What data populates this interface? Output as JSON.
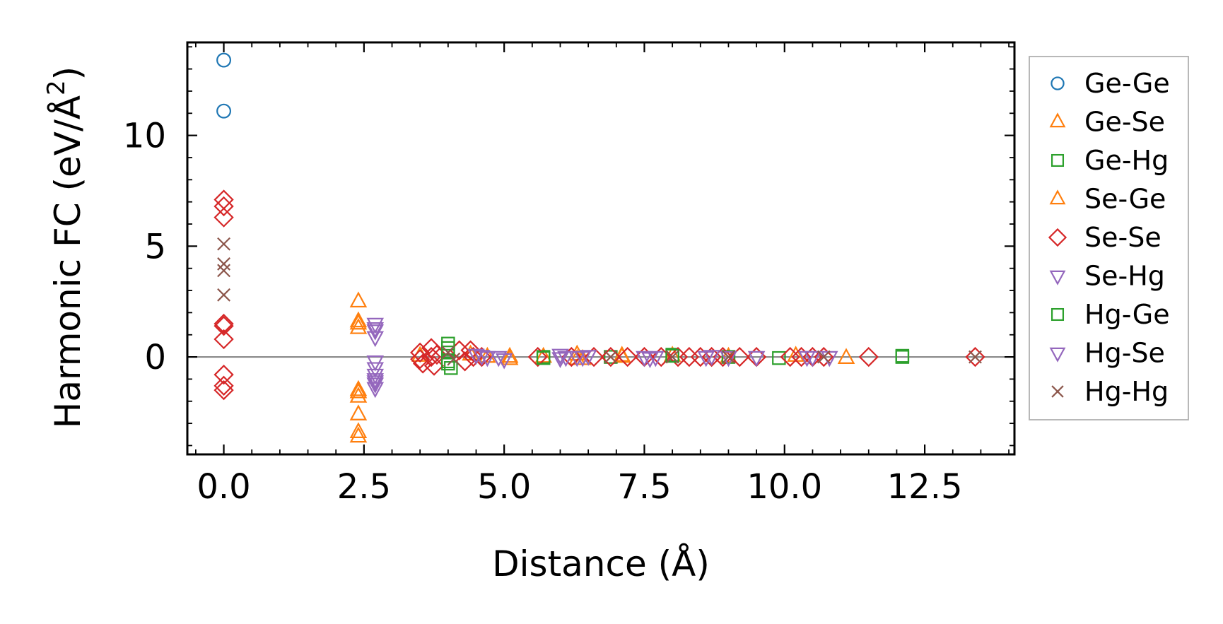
{
  "chart_data": {
    "type": "scatter",
    "title": "",
    "xlabel": "Distance (Å)",
    "ylabel_main": "Harmonic FC (eV/Å",
    "ylabel_sup": "2",
    "ylabel_close": ")",
    "xlim": [
      -0.65,
      14.1
    ],
    "ylim": [
      -4.4,
      14.2
    ],
    "xticks": [
      0.0,
      2.5,
      5.0,
      7.5,
      10.0,
      12.5
    ],
    "xtick_labels": [
      "0.0",
      "2.5",
      "5.0",
      "7.5",
      "10.0",
      "12.5"
    ],
    "yticks": [
      0,
      5,
      10
    ],
    "ytick_labels": [
      "0",
      "5",
      "10"
    ],
    "zero_line": true,
    "legend_position": "right",
    "series": [
      {
        "name": "Ge-Ge",
        "marker": "circle",
        "color": "#1f77b4",
        "x": [
          0.0,
          0.0
        ],
        "y": [
          13.4,
          11.1
        ]
      },
      {
        "name": "Ge-Se",
        "marker": "triangle-up",
        "color": "#ff7f0e",
        "x": [
          2.4,
          2.4,
          2.4,
          2.4,
          2.4,
          2.4,
          2.4,
          2.4,
          3.5,
          4.4,
          4.7,
          5.1,
          5.7,
          6.3,
          6.4,
          7.1,
          8.0,
          9.0,
          10.2,
          11.1
        ],
        "y": [
          2.5,
          1.5,
          1.3,
          -1.6,
          -1.8,
          -2.6,
          -3.4,
          -3.6,
          0.05,
          0.1,
          0.0,
          -0.1,
          0.0,
          0.1,
          -0.1,
          0.0,
          0.05,
          0.0,
          0.05,
          -0.05
        ]
      },
      {
        "name": "Ge-Hg",
        "marker": "square",
        "color": "#2ca02c",
        "x": [
          4.0,
          4.0,
          4.0,
          4.05,
          5.7,
          6.9,
          8.0,
          9.0,
          9.9,
          12.1
        ],
        "y": [
          0.6,
          0.2,
          -0.2,
          -0.5,
          0.0,
          0.0,
          0.1,
          0.0,
          -0.05,
          0.0
        ]
      },
      {
        "name": "Se-Ge",
        "marker": "triangle-up",
        "color": "#ff7f0e",
        "x": [
          2.4,
          2.4,
          5.1,
          6.3,
          7.1
        ],
        "y": [
          1.6,
          -1.5,
          0.0,
          -0.1,
          0.05
        ]
      },
      {
        "name": "Se-Se",
        "marker": "diamond",
        "color": "#d62728",
        "x": [
          0.0,
          0.0,
          0.0,
          0.0,
          0.0,
          0.0,
          0.0,
          0.0,
          0.0,
          3.5,
          3.5,
          3.55,
          3.7,
          3.7,
          3.75,
          3.8,
          4.2,
          4.3,
          4.4,
          4.45,
          4.6,
          5.6,
          6.2,
          6.6,
          6.9,
          7.2,
          7.5,
          7.8,
          8.1,
          8.3,
          8.5,
          8.7,
          8.9,
          9.2,
          9.5,
          10.1,
          10.3,
          10.5,
          10.7,
          11.5,
          13.4
        ],
        "y": [
          7.1,
          6.8,
          6.3,
          1.5,
          1.4,
          0.8,
          -0.8,
          -1.3,
          -1.5,
          0.2,
          -0.1,
          -0.3,
          0.4,
          0.0,
          -0.4,
          0.1,
          0.3,
          -0.2,
          0.3,
          0.0,
          0.0,
          0.0,
          0.0,
          0.0,
          0.0,
          0.0,
          0.0,
          0.0,
          0.0,
          0.0,
          0.0,
          0.0,
          0.0,
          0.0,
          0.0,
          0.0,
          0.0,
          0.0,
          0.0,
          0.0,
          0.0
        ]
      },
      {
        "name": "Se-Hg",
        "marker": "triangle-down",
        "color": "#9467bd",
        "x": [
          2.7,
          2.7,
          2.7,
          2.7,
          2.7,
          2.7,
          2.7,
          2.7,
          2.7,
          4.5,
          4.7,
          4.9,
          5.0,
          6.0,
          6.1,
          6.3,
          6.5,
          7.5,
          7.7,
          8.6,
          9.0,
          9.5,
          10.4,
          10.8
        ],
        "y": [
          1.5,
          1.2,
          0.9,
          -0.2,
          -0.5,
          -0.8,
          -1.0,
          -1.2,
          -1.4,
          0.1,
          0.0,
          0.0,
          -0.1,
          0.1,
          0.0,
          0.0,
          0.05,
          0.0,
          0.0,
          0.0,
          0.0,
          0.0,
          0.0,
          0.0
        ]
      },
      {
        "name": "Hg-Ge",
        "marker": "square",
        "color": "#2ca02c",
        "x": [
          4.0,
          4.0,
          5.7,
          8.0,
          12.1
        ],
        "y": [
          0.4,
          -0.3,
          -0.05,
          0.05,
          0.05
        ]
      },
      {
        "name": "Hg-Se",
        "marker": "triangle-down",
        "color": "#9467bd",
        "x": [
          2.7,
          2.7,
          4.6,
          6.0,
          6.4,
          7.6,
          8.7,
          10.5
        ],
        "y": [
          1.3,
          -1.1,
          0.05,
          -0.05,
          0.0,
          -0.05,
          0.05,
          0.0
        ]
      },
      {
        "name": "Hg-Hg",
        "marker": "x",
        "color": "#8c564b",
        "x": [
          0.0,
          0.0,
          0.0,
          0.0,
          4.0,
          4.1,
          6.9,
          8.0,
          9.0,
          10.7,
          13.4
        ],
        "y": [
          5.1,
          4.2,
          3.9,
          2.8,
          0.2,
          -0.1,
          0.0,
          0.0,
          0.0,
          0.0,
          0.0
        ]
      }
    ]
  }
}
